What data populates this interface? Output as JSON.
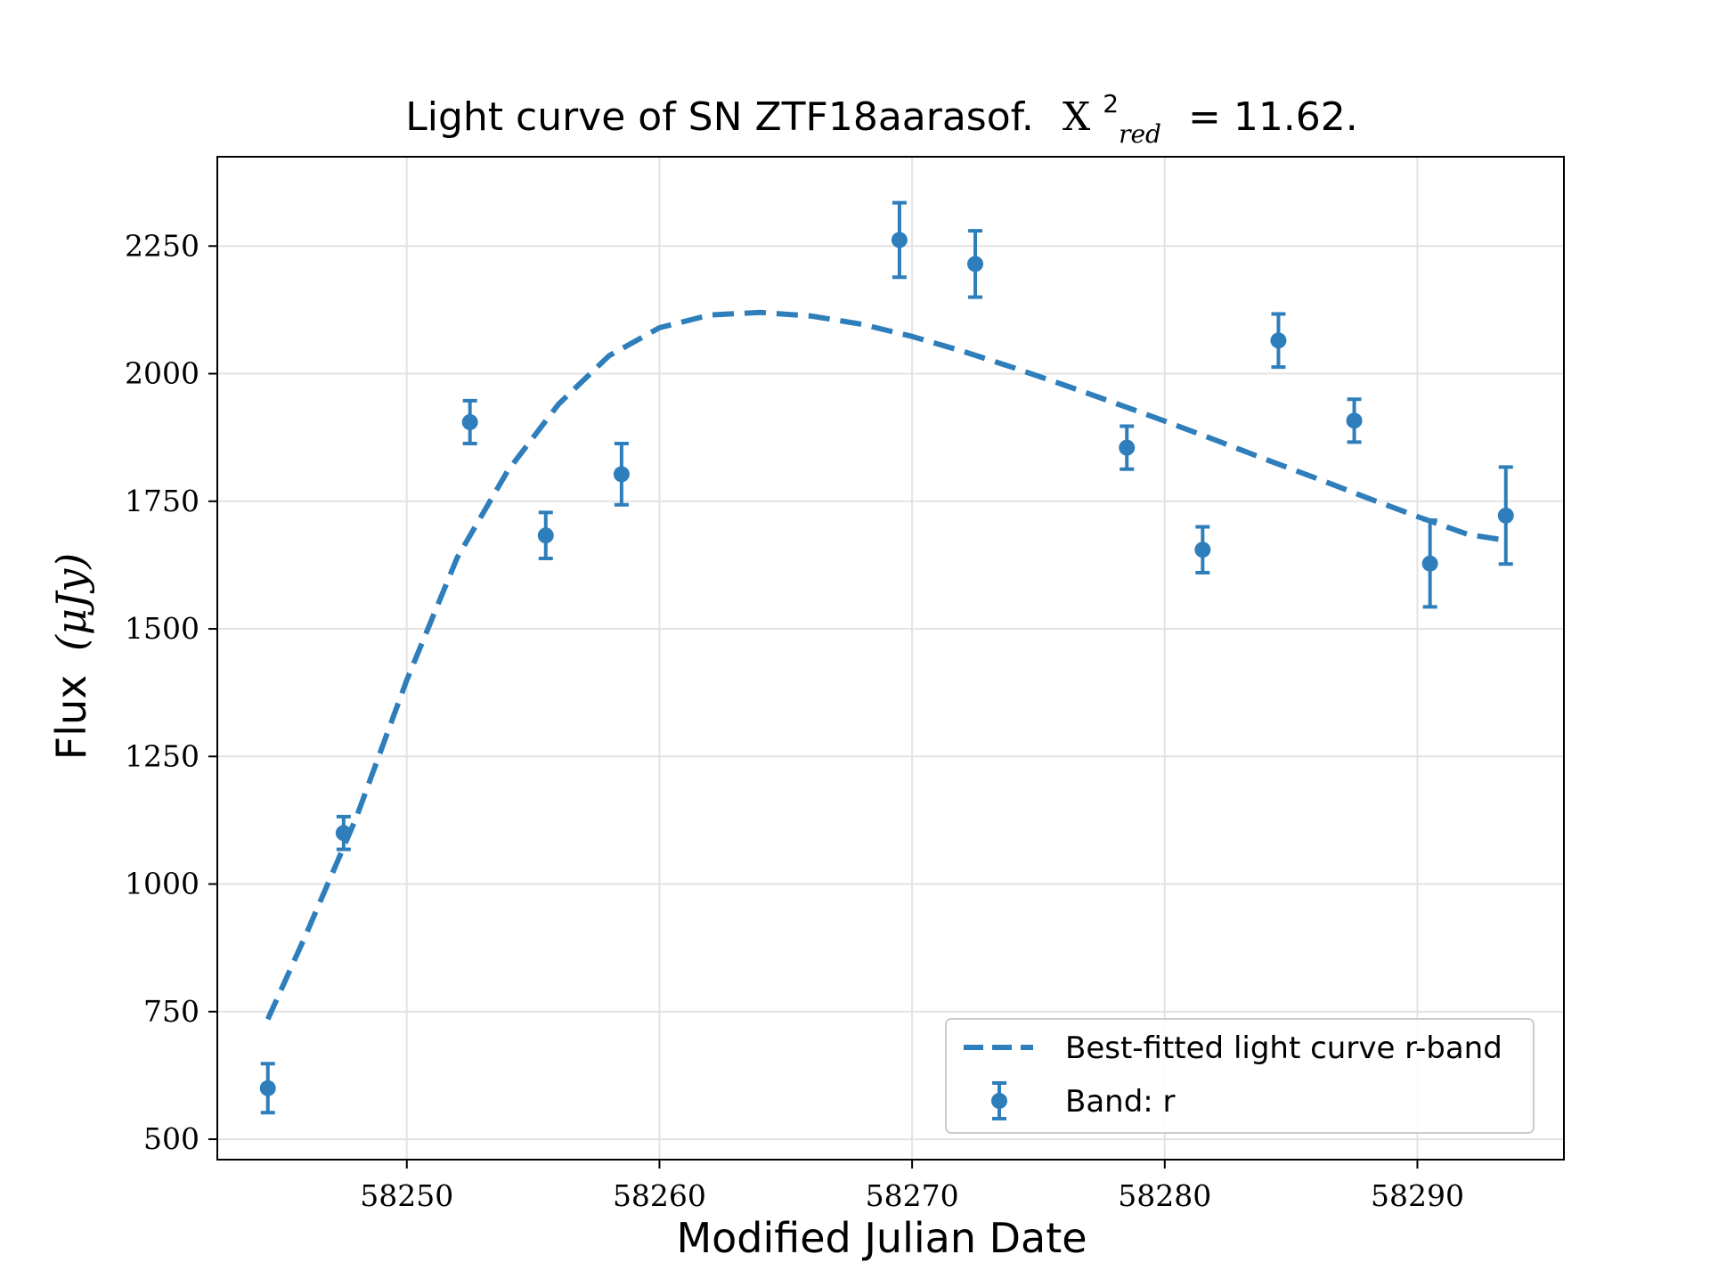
{
  "chart_data": {
    "type": "scatter",
    "title": "Light curve of SN ZTF18aarasof.",
    "title_stat_symbol": "X",
    "title_stat_superscript": "2",
    "title_stat_subscript": "red",
    "title_stat_value": "= 11.62.",
    "xlabel": "Modified Julian Date",
    "ylabel_text": "Flux",
    "ylabel_units": "(μJy)",
    "xlim": [
      58242.5,
      58295.8
    ],
    "ylim": [
      460,
      2425
    ],
    "xticks": [
      58250,
      58260,
      58270,
      58280,
      58290
    ],
    "yticks": [
      500,
      750,
      1000,
      1250,
      1500,
      1750,
      2000,
      2250
    ],
    "grid": true,
    "legend_position": "lower-right",
    "color": "#2e7ebc",
    "series": [
      {
        "name": "Best-fitted light curve r-band",
        "style": "dashed-line",
        "x": [
          58244.5,
          58246,
          58248,
          58250,
          58252,
          58254,
          58256,
          58258,
          58260,
          58262,
          58264,
          58266,
          58268,
          58270,
          58272,
          58274,
          58276,
          58278,
          58280,
          58282,
          58284,
          58286,
          58288,
          58290,
          58292,
          58293.3
        ],
        "y": [
          735,
          900,
          1130,
          1400,
          1640,
          1810,
          1940,
          2035,
          2090,
          2115,
          2120,
          2113,
          2097,
          2073,
          2044,
          2012,
          1978,
          1943,
          1907,
          1870,
          1832,
          1795,
          1757,
          1720,
          1685,
          1675
        ]
      },
      {
        "name": "Band: r",
        "style": "errorbar-points",
        "x": [
          58244.5,
          58247.5,
          58252.5,
          58255.5,
          58258.5,
          58269.5,
          58272.5,
          58278.5,
          58281.5,
          58284.5,
          58287.5,
          58290.5,
          58293.5
        ],
        "y": [
          600,
          1100,
          1905,
          1683,
          1803,
          2262,
          2215,
          1855,
          1655,
          2065,
          1908,
          1628,
          1722
        ],
        "err": [
          48,
          32,
          42,
          45,
          60,
          73,
          65,
          42,
          45,
          52,
          42,
          85,
          95
        ]
      }
    ]
  }
}
